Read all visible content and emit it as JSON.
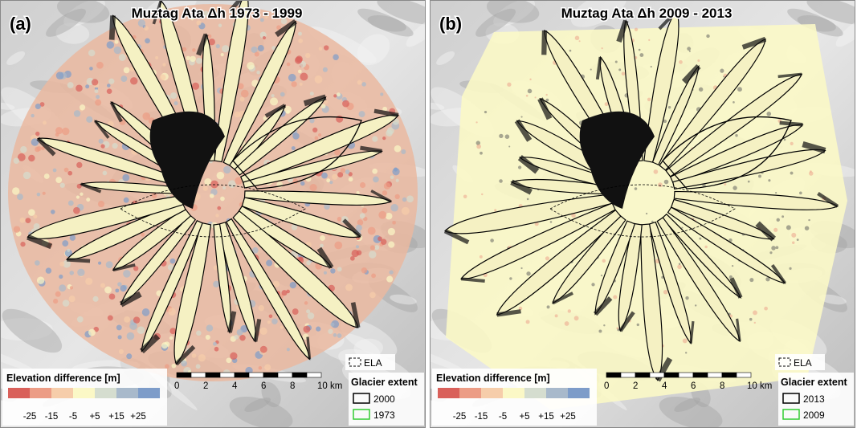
{
  "panels": [
    {
      "label": "(a)",
      "title": "Muztag Ata Δh 1973 - 1999",
      "overlay": "difference",
      "legend": {
        "title": "Elevation difference [m]",
        "colors": [
          "#d9605a",
          "#ec9c85",
          "#f6cdaa",
          "#fbf8c6",
          "#d5ddcf",
          "#a8b9cb",
          "#7d9cc9"
        ],
        "labels": [
          "-25",
          "-15",
          "-5",
          "+5",
          "+15",
          "+25"
        ]
      },
      "scale_bar": [
        "0",
        "2",
        "4",
        "6",
        "8",
        "10 km"
      ],
      "ela": "ELA",
      "glacier_extent": {
        "title": "Glacier extent",
        "entries": [
          {
            "label": "2000",
            "color": "#000000"
          },
          {
            "label": "1973",
            "color": "#33cc33"
          }
        ]
      }
    },
    {
      "label": "(b)",
      "title": "Muztag Ata Δh 2009 - 2013",
      "overlay": "stable",
      "legend": {
        "title": "Elevation difference [m]",
        "colors": [
          "#d9605a",
          "#ec9c85",
          "#f6cdaa",
          "#fbf8c6",
          "#d5ddcf",
          "#a8b9cb",
          "#7d9cc9"
        ],
        "labels": [
          "-25",
          "-15",
          "-5",
          "+5",
          "+15",
          "+25"
        ]
      },
      "scale_bar": [
        "0",
        "2",
        "4",
        "6",
        "8",
        "10 km"
      ],
      "ela": "ELA",
      "glacier_extent": {
        "title": "Glacier extent",
        "entries": [
          {
            "label": "2013",
            "color": "#000000"
          },
          {
            "label": "2009",
            "color": "#33cc33"
          }
        ]
      }
    }
  ]
}
